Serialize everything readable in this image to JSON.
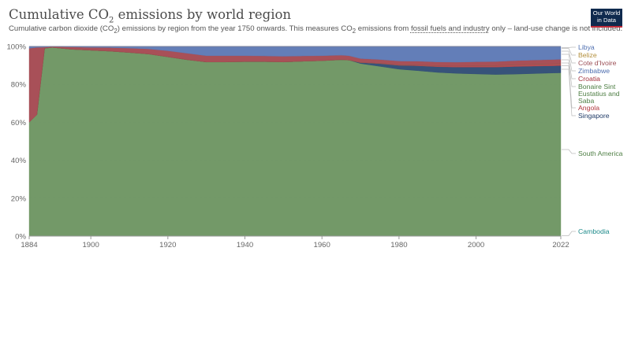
{
  "header": {
    "title_main": "Cumulative CO",
    "title_sub": "2",
    "title_rest": " emissions by world region",
    "subtitle_a": "Cumulative carbon dioxide (CO",
    "subtitle_b": "2",
    "subtitle_c": ") emissions by region from the year 1750 onwards. This measures CO",
    "subtitle_d": "2",
    "subtitle_e": " emissions from ",
    "subtitle_link": "fossil fuels and industry",
    "subtitle_f": " only – land-use change is not included.",
    "logo_line1": "Our World",
    "logo_line2": "in Data"
  },
  "chart_data": {
    "type": "area",
    "stacked": true,
    "normalized_percent": true,
    "x": [
      1884,
      1886,
      1888,
      1890,
      1895,
      1900,
      1905,
      1910,
      1915,
      1920,
      1925,
      1930,
      1935,
      1940,
      1945,
      1950,
      1955,
      1960,
      1965,
      1967,
      1970,
      1975,
      1980,
      1985,
      1990,
      1995,
      2000,
      2005,
      2010,
      2015,
      2020,
      2022
    ],
    "series": [
      {
        "name": "Cambodia",
        "color": "#2f9b9b",
        "values": [
          0,
          0,
          0,
          0,
          0,
          0,
          0,
          0,
          0,
          0,
          0,
          0,
          0,
          0,
          0,
          0,
          0,
          0,
          0,
          0,
          0,
          0,
          0,
          0,
          0,
          0,
          0,
          0,
          0,
          0,
          0.1,
          0.1
        ]
      },
      {
        "name": "South America",
        "color": "#6c9460",
        "values": [
          60,
          64,
          99,
          99.5,
          98.5,
          98,
          97.5,
          96.8,
          96,
          94.5,
          93,
          91.8,
          91.8,
          92,
          92,
          91.8,
          92.2,
          92.5,
          93,
          92.8,
          91,
          89.5,
          88,
          87.2,
          86.3,
          85.8,
          85.5,
          85.2,
          85.4,
          85.7,
          85.9,
          86
        ]
      },
      {
        "name": "Singapore",
        "color": "#2c4a73",
        "values": [
          0,
          0,
          0,
          0,
          0,
          0,
          0,
          0,
          0,
          0,
          0,
          0,
          0,
          0,
          0,
          0,
          0,
          0,
          0,
          0,
          0.5,
          1.4,
          2,
          2.6,
          3,
          3.3,
          3.6,
          3.9,
          4,
          3.9,
          3.8,
          3.8
        ]
      },
      {
        "name": "Angola",
        "color": "#b1454a",
        "values": [
          0,
          0,
          0,
          0,
          0,
          0,
          0,
          0,
          0,
          0,
          0,
          0,
          0,
          0,
          0,
          0,
          0,
          0,
          0,
          0,
          0,
          0.2,
          0.3,
          0.4,
          0.5,
          0.6,
          0.7,
          0.8,
          0.9,
          1,
          1,
          1
        ]
      },
      {
        "name": "Bonaire Sint Eustatius and Saba",
        "color": "#5f8f4e",
        "values": [
          0,
          0,
          0,
          0,
          0,
          0,
          0,
          0,
          0,
          0,
          0,
          0,
          0,
          0,
          0,
          0,
          0,
          0,
          0,
          0,
          0,
          0,
          0,
          0,
          0,
          0,
          0,
          0,
          0,
          0,
          0,
          0
        ]
      },
      {
        "name": "Croatia",
        "color": "#a3474f",
        "values": [
          39,
          35.5,
          0.6,
          0.4,
          1.2,
          1.5,
          1.9,
          2.3,
          2.7,
          3.2,
          3.4,
          3.3,
          3.3,
          3.1,
          3,
          3,
          2.8,
          2.6,
          2.4,
          2.3,
          2.1,
          2,
          2,
          2,
          2,
          2,
          2.1,
          2.1,
          2.2,
          2.2,
          2.3,
          2.3
        ]
      },
      {
        "name": "Zimbabwe",
        "color": "#5b77b4",
        "values": [
          1,
          0.5,
          0.4,
          0.1,
          0.3,
          0.5,
          0.6,
          0.9,
          1.3,
          2.3,
          3.6,
          4.9,
          4.9,
          4.9,
          5,
          5.2,
          5,
          4.9,
          4.6,
          4.9,
          6.4,
          6.9,
          7.7,
          7.8,
          8.2,
          8.3,
          8.1,
          8,
          7.5,
          7.2,
          6.9,
          6.8
        ]
      },
      {
        "name": "Cote d'Ivoire",
        "color": "#b06a6f",
        "values": [
          0,
          0,
          0,
          0,
          0,
          0,
          0,
          0,
          0,
          0,
          0,
          0,
          0,
          0,
          0,
          0,
          0,
          0,
          0,
          0,
          0,
          0,
          0,
          0,
          0,
          0,
          0,
          0,
          0,
          0,
          0,
          0
        ]
      },
      {
        "name": "Belize",
        "color": "#c8a55a",
        "values": [
          0,
          0,
          0,
          0,
          0,
          0,
          0,
          0,
          0,
          0,
          0,
          0,
          0,
          0,
          0,
          0,
          0,
          0,
          0,
          0,
          0,
          0,
          0,
          0,
          0,
          0,
          0,
          0,
          0,
          0,
          0,
          0
        ]
      },
      {
        "name": "Libya",
        "color": "#5e7bb8",
        "values": [
          0,
          0,
          0,
          0,
          0,
          0,
          0,
          0,
          0,
          0,
          0,
          0,
          0,
          0,
          0,
          0,
          0,
          0,
          0,
          0,
          0,
          0,
          0,
          0,
          0,
          0,
          0,
          0,
          0,
          0,
          0,
          0
        ]
      }
    ],
    "y_ticks": [
      "0%",
      "20%",
      "40%",
      "60%",
      "80%",
      "100%"
    ],
    "x_ticks": [
      "1884",
      "1900",
      "1920",
      "1940",
      "1960",
      "1980",
      "2000",
      "2022"
    ],
    "ylim": [
      0,
      100
    ],
    "xlim": [
      1884,
      2022
    ],
    "legend_position": "right"
  },
  "legend": [
    {
      "text": "Libya",
      "color": "#4f6fb0"
    },
    {
      "text": "Belize",
      "color": "#b38f3c"
    },
    {
      "text": "Cote d'Ivoire",
      "color": "#9c4f56"
    },
    {
      "text": "Zimbabwe",
      "color": "#4f6fb0"
    },
    {
      "text": "Croatia",
      "color": "#a3303b"
    },
    {
      "text": "Bonaire Sint",
      "color": "#4f7f45"
    },
    {
      "text": "Eustatius and",
      "color": "#4f7f45"
    },
    {
      "text": "Saba",
      "color": "#4f7f45"
    },
    {
      "text": "Angola",
      "color": "#b0383e"
    },
    {
      "text": "Singapore",
      "color": "#1f3a66"
    },
    {
      "text": "South America",
      "color": "#4f7f45"
    },
    {
      "text": "Cambodia",
      "color": "#1e8b8b"
    }
  ]
}
